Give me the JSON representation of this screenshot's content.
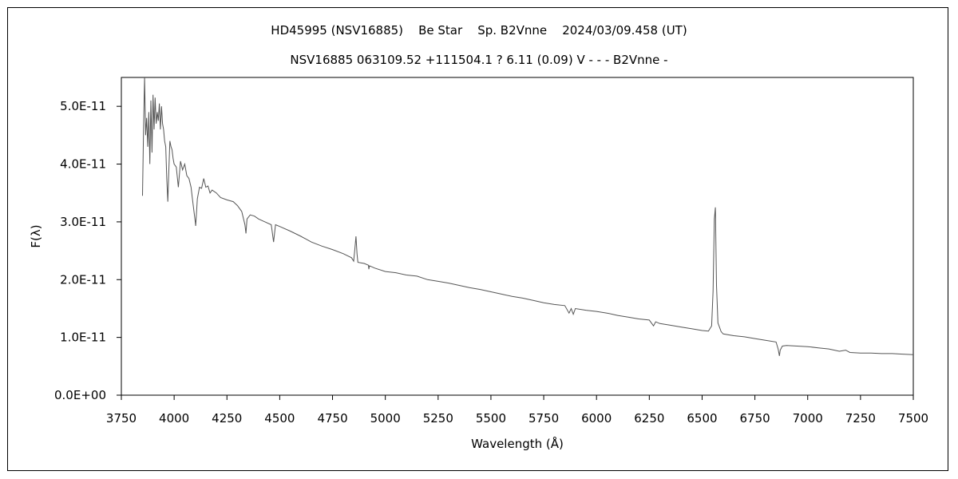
{
  "chart_data": {
    "type": "line",
    "title": "HD45995 (NSV16885)    Be Star    Sp. B2Vnne    2024/03/09.458 (UT)",
    "subtitle": "NSV16885 063109.52 +111504.1 ? 6.11 (0.09) V - - - B2Vnne -",
    "xlabel": "Wavelength (Å)",
    "ylabel": "F(λ)",
    "xlim": [
      3750,
      7500
    ],
    "ylim": [
      0,
      5.5e-11
    ],
    "x_ticks": [
      3750,
      4000,
      4250,
      4500,
      4750,
      5000,
      5250,
      5500,
      5750,
      6000,
      6250,
      6500,
      6750,
      7000,
      7250,
      7500
    ],
    "x_tick_labels": [
      "3750",
      "4000",
      "4250",
      "4500",
      "4750",
      "5000",
      "5250",
      "5500",
      "5750",
      "6000",
      "6250",
      "6500",
      "6750",
      "7000",
      "7250",
      "7500"
    ],
    "y_ticks": [
      0,
      1e-11,
      2e-11,
      3e-11,
      4e-11,
      5e-11
    ],
    "y_tick_labels": [
      "0.0E+00",
      "1.0E-11",
      "2.0E-11",
      "3.0E-11",
      "4.0E-11",
      "5.0E-11"
    ],
    "grid": false,
    "series_color": "#555555",
    "series": [
      {
        "x": [
          3850,
          3855,
          3860,
          3865,
          3870,
          3875,
          3880,
          3885,
          3890,
          3895,
          3900,
          3905,
          3910,
          3915,
          3920,
          3925,
          3930,
          3935,
          3940,
          3945,
          3950,
          3955,
          3960,
          3965,
          3970,
          3975,
          3980,
          3985,
          3990,
          3995,
          4000,
          4010,
          4020,
          4030,
          4040,
          4050,
          4060,
          4070,
          4080,
          4090,
          4100,
          4102,
          4105,
          4110,
          4120,
          4130,
          4140,
          4150,
          4160,
          4170,
          4180,
          4200,
          4220,
          4250,
          4280,
          4300,
          4320,
          4335,
          4340,
          4345,
          4360,
          4380,
          4400,
          4430,
          4460,
          4471,
          4480,
          4500,
          4550,
          4600,
          4650,
          4700,
          4750,
          4800,
          4840,
          4850,
          4855,
          4861,
          4866,
          4870,
          4900,
          4920,
          4922,
          4925,
          4950,
          5000,
          5050,
          5100,
          5150,
          5200,
          5250,
          5300,
          5350,
          5400,
          5450,
          5500,
          5550,
          5600,
          5650,
          5700,
          5750,
          5800,
          5850,
          5870,
          5880,
          5890,
          5900,
          5950,
          6000,
          6050,
          6100,
          6150,
          6200,
          6250,
          6270,
          6280,
          6300,
          6350,
          6400,
          6450,
          6500,
          6530,
          6545,
          6552,
          6558,
          6563,
          6568,
          6575,
          6590,
          6600,
          6650,
          6700,
          6750,
          6800,
          6850,
          6860,
          6866,
          6870,
          6880,
          6900,
          6950,
          7000,
          7050,
          7100,
          7150,
          7180,
          7200,
          7250,
          7300,
          7350,
          7400,
          7450,
          7500
        ],
        "y": [
          3.45e-11,
          4.6e-11,
          5.5e-11,
          4.5e-11,
          4.8e-11,
          4.3e-11,
          4.9e-11,
          4e-11,
          5.1e-11,
          4.2e-11,
          5.2e-11,
          4.6e-11,
          5.15e-11,
          4.7e-11,
          4.9e-11,
          4.75e-11,
          5.05e-11,
          4.6e-11,
          5e-11,
          4.7e-11,
          4.6e-11,
          4.4e-11,
          4.3e-11,
          3.75e-11,
          3.35e-11,
          3.9e-11,
          4.4e-11,
          4.3e-11,
          4.25e-11,
          4.1e-11,
          4e-11,
          3.95e-11,
          3.6e-11,
          4.05e-11,
          3.9e-11,
          4e-11,
          3.8e-11,
          3.75e-11,
          3.6e-11,
          3.3e-11,
          3e-11,
          2.93e-11,
          3.1e-11,
          3.4e-11,
          3.6e-11,
          3.58e-11,
          3.75e-11,
          3.6e-11,
          3.62e-11,
          3.5e-11,
          3.55e-11,
          3.5e-11,
          3.42e-11,
          3.38e-11,
          3.35e-11,
          3.28e-11,
          3.18e-11,
          2.95e-11,
          2.8e-11,
          3.05e-11,
          3.12e-11,
          3.1e-11,
          3.05e-11,
          3e-11,
          2.95e-11,
          2.65e-11,
          2.95e-11,
          2.92e-11,
          2.84e-11,
          2.75e-11,
          2.65e-11,
          2.58e-11,
          2.52e-11,
          2.45e-11,
          2.38e-11,
          2.32e-11,
          2.5e-11,
          2.75e-11,
          2.45e-11,
          2.3e-11,
          2.28e-11,
          2.25e-11,
          2.18e-11,
          2.24e-11,
          2.2e-11,
          2.14e-11,
          2.12e-11,
          2.08e-11,
          2.06e-11,
          2e-11,
          1.97e-11,
          1.94e-11,
          1.9e-11,
          1.86e-11,
          1.83e-11,
          1.79e-11,
          1.75e-11,
          1.71e-11,
          1.68e-11,
          1.64e-11,
          1.6e-11,
          1.57e-11,
          1.55e-11,
          1.42e-11,
          1.5e-11,
          1.4e-11,
          1.5e-11,
          1.47e-11,
          1.45e-11,
          1.42e-11,
          1.38e-11,
          1.35e-11,
          1.32e-11,
          1.3e-11,
          1.2e-11,
          1.27e-11,
          1.24e-11,
          1.21e-11,
          1.18e-11,
          1.15e-11,
          1.12e-11,
          1.11e-11,
          1.2e-11,
          1.8e-11,
          3.05e-11,
          3.25e-11,
          1.9e-11,
          1.25e-11,
          1.1e-11,
          1.06e-11,
          1.03e-11,
          1.01e-11,
          9.8e-12,
          9.5e-12,
          9.2e-12,
          8e-12,
          6.8e-12,
          7.8e-12,
          8.5e-12,
          8.6e-12,
          8.5e-12,
          8.4e-12,
          8.2e-12,
          8e-12,
          7.6e-12,
          7.8e-12,
          7.4e-12,
          7.3e-12,
          7.3e-12,
          7.2e-12,
          7.2e-12,
          7.1e-12,
          7e-12
        ]
      }
    ]
  }
}
